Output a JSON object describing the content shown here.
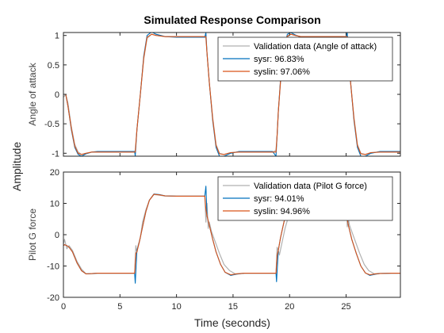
{
  "figure": {
    "title": "Simulated Response Comparison",
    "xlabel": "Time (seconds)",
    "ylabel": "Amplitude"
  },
  "chart_data": [
    {
      "type": "line",
      "ylabel": "Angle of attack",
      "xlim": [
        0,
        29.8
      ],
      "ylim": [
        -1.05,
        1.05
      ],
      "xticks": [],
      "yticks": [
        -1,
        -0.5,
        0,
        0.5,
        1
      ],
      "ytick_labels": [
        "-1",
        "-0.5",
        "0",
        "0.5",
        "1"
      ],
      "legend_position": "top-right",
      "series": [
        {
          "name": "Validation data (Angle of attack)",
          "color": "#b0b0b0",
          "x": [
            0,
            0.2,
            0.4,
            0.7,
            1.0,
            1.3,
            1.6,
            2.0,
            2.5,
            3.0,
            4.0,
            5.0,
            6.0,
            6.3,
            6.35,
            6.5,
            6.8,
            7.1,
            7.4,
            7.8,
            8.2,
            9.0,
            10.0,
            11.0,
            12.0,
            12.5,
            12.6,
            12.7,
            12.9,
            13.2,
            13.5,
            13.8,
            14.2,
            14.8,
            15.5,
            16.5,
            17.5,
            18.5,
            18.8,
            18.9,
            19.0,
            19.2,
            19.5,
            19.8,
            20.1,
            20.5,
            21.0,
            22.0,
            23.0,
            24.0,
            25.0,
            25.1,
            25.2,
            25.4,
            25.7,
            26.0,
            26.3,
            26.7,
            27.2,
            28.0,
            29.0,
            29.8
          ],
          "y": [
            -0.05,
            0.0,
            -0.15,
            -0.55,
            -0.85,
            -0.98,
            -1.02,
            -1.0,
            -0.98,
            -0.98,
            -0.98,
            -0.98,
            -0.98,
            -0.98,
            -0.95,
            -0.6,
            0.0,
            0.6,
            0.95,
            1.02,
            1.0,
            0.98,
            0.98,
            0.98,
            0.98,
            0.98,
            0.95,
            0.7,
            0.2,
            -0.4,
            -0.85,
            -1.0,
            -1.02,
            -0.99,
            -0.98,
            -0.98,
            -0.98,
            -0.98,
            -0.95,
            -0.7,
            -0.3,
            0.2,
            0.7,
            0.97,
            1.02,
            1.0,
            0.98,
            0.98,
            0.98,
            0.98,
            0.98,
            0.95,
            0.7,
            0.2,
            -0.4,
            -0.85,
            -1.0,
            -1.02,
            -0.99,
            -0.98,
            -0.98,
            -0.98
          ]
        },
        {
          "name": "sysr: 96.83%",
          "color": "#0072bd",
          "x": [
            0,
            0.2,
            0.4,
            0.7,
            1.0,
            1.3,
            1.6,
            2.0,
            2.5,
            3.0,
            4.0,
            5.0,
            6.0,
            6.3,
            6.35,
            6.5,
            6.8,
            7.1,
            7.4,
            7.8,
            8.2,
            9.0,
            10.0,
            11.0,
            12.0,
            12.5,
            12.6,
            12.7,
            12.9,
            13.2,
            13.5,
            13.8,
            14.2,
            14.8,
            15.5,
            16.5,
            17.5,
            18.5,
            18.8,
            18.9,
            19.0,
            19.2,
            19.5,
            19.8,
            20.1,
            20.5,
            21.0,
            22.0,
            23.0,
            24.0,
            25.0,
            25.1,
            25.2,
            25.4,
            25.7,
            26.0,
            26.3,
            26.7,
            27.2,
            28.0,
            29.0,
            29.8
          ],
          "y": [
            0.0,
            0.0,
            -0.2,
            -0.6,
            -0.9,
            -1.02,
            -1.05,
            -1.01,
            -0.98,
            -0.97,
            -0.97,
            -0.97,
            -0.97,
            -0.97,
            -1.05,
            -0.6,
            0.0,
            0.65,
            1.0,
            1.06,
            1.02,
            0.98,
            0.97,
            0.97,
            0.97,
            0.97,
            1.05,
            0.7,
            0.2,
            -0.45,
            -0.9,
            -1.05,
            -1.05,
            -1.0,
            -0.97,
            -0.97,
            -0.97,
            -0.97,
            -1.05,
            -0.7,
            -0.3,
            0.25,
            0.75,
            1.02,
            1.05,
            1.01,
            0.97,
            0.97,
            0.97,
            0.97,
            0.97,
            1.05,
            0.7,
            0.2,
            -0.45,
            -0.9,
            -1.05,
            -1.05,
            -1.0,
            -0.97,
            -0.97,
            -0.97
          ]
        },
        {
          "name": "syslin: 97.06%",
          "color": "#d95319",
          "x": [
            0,
            0.2,
            0.4,
            0.7,
            1.0,
            1.3,
            1.6,
            2.0,
            2.5,
            3.0,
            4.0,
            5.0,
            6.0,
            6.3,
            6.35,
            6.5,
            6.8,
            7.1,
            7.4,
            7.8,
            8.2,
            9.0,
            10.0,
            11.0,
            12.0,
            12.5,
            12.6,
            12.7,
            12.9,
            13.2,
            13.5,
            13.8,
            14.2,
            14.8,
            15.5,
            16.5,
            17.5,
            18.5,
            18.8,
            18.9,
            19.0,
            19.2,
            19.5,
            19.8,
            20.1,
            20.5,
            21.0,
            22.0,
            23.0,
            24.0,
            25.0,
            25.1,
            25.2,
            25.4,
            25.7,
            26.0,
            26.3,
            26.7,
            27.2,
            28.0,
            29.0,
            29.8
          ],
          "y": [
            0.0,
            0.0,
            -0.2,
            -0.58,
            -0.88,
            -1.0,
            -1.02,
            -1.0,
            -0.98,
            -0.98,
            -0.98,
            -0.98,
            -0.98,
            -0.98,
            -0.98,
            -0.6,
            0.0,
            0.62,
            0.97,
            1.02,
            1.0,
            0.98,
            0.98,
            0.98,
            0.98,
            0.98,
            0.98,
            0.7,
            0.2,
            -0.42,
            -0.87,
            -1.01,
            -1.02,
            -0.99,
            -0.98,
            -0.98,
            -0.98,
            -0.98,
            -0.98,
            -0.7,
            -0.3,
            0.22,
            0.72,
            0.99,
            1.02,
            1.0,
            0.98,
            0.98,
            0.98,
            0.98,
            0.98,
            0.98,
            0.7,
            0.2,
            -0.42,
            -0.87,
            -1.01,
            -1.02,
            -0.99,
            -0.98,
            -0.98,
            -0.98
          ]
        }
      ]
    },
    {
      "type": "line",
      "ylabel": "Pilot G force",
      "xlim": [
        0,
        29.8
      ],
      "ylim": [
        -20,
        20
      ],
      "xticks": [
        0,
        5,
        10,
        15,
        20,
        25
      ],
      "xtick_labels": [
        "0",
        "5",
        "10",
        "15",
        "20",
        "25"
      ],
      "yticks": [
        -20,
        -10,
        0,
        10,
        20
      ],
      "ytick_labels": [
        "-20",
        "-10",
        "0",
        "10",
        "20"
      ],
      "legend_position": "top-right",
      "series": [
        {
          "name": "Validation data (Pilot G force)",
          "color": "#b0b0b0",
          "x": [
            0,
            0.1,
            0.3,
            0.5,
            0.8,
            1.2,
            1.6,
            2.0,
            2.5,
            3.0,
            4.0,
            5.0,
            6.0,
            6.3,
            6.4,
            6.5,
            6.6,
            6.8,
            7.0,
            7.3,
            7.6,
            8.0,
            8.5,
            9.0,
            10.0,
            11.0,
            12.0,
            12.5,
            12.6,
            12.7,
            12.8,
            12.9,
            13.1,
            13.4,
            13.8,
            14.2,
            14.7,
            15.2,
            16.0,
            17.0,
            18.0,
            18.8,
            18.9,
            19.0,
            19.1,
            19.3,
            19.6,
            20.0,
            20.4,
            20.8,
            21.3,
            22.0,
            23.0,
            24.0,
            25.0,
            25.1,
            25.2,
            25.3,
            25.5,
            25.8,
            26.2,
            26.6,
            27.0,
            27.5,
            28.0,
            29.0,
            29.8
          ],
          "y": [
            -3,
            -1.5,
            -4.5,
            -3.5,
            -5,
            -8.5,
            -11,
            -12.5,
            -12.5,
            -12.3,
            -12.3,
            -12.3,
            -12.3,
            -12.3,
            -3.5,
            -5.5,
            -3.5,
            -1,
            4,
            8,
            11,
            12.8,
            12.6,
            12.3,
            12.3,
            12.3,
            12.3,
            12.3,
            4,
            10,
            2,
            4,
            1,
            -2,
            -6,
            -9.5,
            -11.5,
            -12.5,
            -12.3,
            -12.3,
            -12.3,
            -12.3,
            -4,
            -5,
            -6.5,
            -3,
            2,
            7,
            11,
            12.8,
            12.6,
            12.3,
            12.3,
            12.3,
            12.3,
            2.5,
            5,
            3,
            1,
            -2,
            -6,
            -9.5,
            -11.5,
            -12.5,
            -12.3,
            -12.3,
            -12.3
          ]
        },
        {
          "name": "sysr: 94.01%",
          "color": "#0072bd",
          "x": [
            0,
            0.1,
            0.3,
            0.5,
            0.8,
            1.2,
            1.6,
            2.0,
            2.5,
            3.0,
            4.0,
            5.0,
            6.0,
            6.3,
            6.35,
            6.5,
            6.7,
            7.0,
            7.3,
            7.6,
            8.0,
            8.5,
            9.0,
            10.0,
            11.0,
            12.0,
            12.5,
            12.6,
            12.7,
            12.9,
            13.2,
            13.5,
            13.9,
            14.3,
            14.8,
            15.3,
            16.0,
            17.0,
            18.0,
            18.8,
            18.85,
            19.0,
            19.2,
            19.5,
            19.9,
            20.3,
            20.8,
            21.3,
            22.0,
            23.0,
            24.0,
            25.0,
            25.05,
            25.2,
            25.5,
            25.9,
            26.3,
            26.7,
            27.1,
            27.6,
            28.0,
            29.0,
            29.8
          ],
          "y": [
            -3.5,
            -3.2,
            -3.5,
            -4,
            -5.5,
            -9,
            -11.5,
            -12.5,
            -12.4,
            -12.3,
            -12.3,
            -12.3,
            -12.3,
            -12.3,
            -15.5,
            -5,
            -2.5,
            2.5,
            7.5,
            11,
            13,
            12.8,
            12.4,
            12.3,
            12.3,
            12.3,
            12.3,
            15.5,
            6,
            3,
            -1.5,
            -5.5,
            -9.5,
            -12,
            -13,
            -12.6,
            -12.3,
            -12.3,
            -12.3,
            -12.3,
            -15,
            -5,
            -1,
            4,
            9,
            12,
            13.2,
            12.6,
            12.3,
            12.3,
            12.3,
            12.3,
            6.5,
            3,
            -1.5,
            -6,
            -10,
            -12.2,
            -13,
            -12.6,
            -12.4,
            -12.3,
            -12.3
          ]
        },
        {
          "name": "syslin: 94.96%",
          "color": "#d95319",
          "x": [
            0,
            0.1,
            0.3,
            0.5,
            0.8,
            1.2,
            1.6,
            2.0,
            2.5,
            3.0,
            4.0,
            5.0,
            6.0,
            6.3,
            6.4,
            6.5,
            6.7,
            7.0,
            7.3,
            7.6,
            8.0,
            8.5,
            9.0,
            10.0,
            11.0,
            12.0,
            12.5,
            12.6,
            12.7,
            12.9,
            13.2,
            13.5,
            13.9,
            14.3,
            14.8,
            15.3,
            16.0,
            17.0,
            18.0,
            18.8,
            18.9,
            19.0,
            19.2,
            19.5,
            19.9,
            20.3,
            20.8,
            21.3,
            22.0,
            23.0,
            24.0,
            25.0,
            25.1,
            25.2,
            25.5,
            25.9,
            26.3,
            26.7,
            27.1,
            27.6,
            28.0,
            29.0,
            29.8
          ],
          "y": [
            -3.5,
            -3.2,
            -3.5,
            -4,
            -5.5,
            -9,
            -11.5,
            -12.5,
            -12.4,
            -12.3,
            -12.3,
            -12.3,
            -12.3,
            -12.3,
            -6,
            -5.5,
            -2.5,
            2.5,
            7.5,
            11,
            12.9,
            12.7,
            12.4,
            12.3,
            12.3,
            12.3,
            12.3,
            8,
            6,
            3,
            -1.5,
            -5.5,
            -9.5,
            -12,
            -12.8,
            -12.5,
            -12.3,
            -12.3,
            -12.3,
            -12.3,
            -6.5,
            -5,
            -1,
            4,
            9,
            12,
            13,
            12.5,
            12.3,
            12.3,
            12.3,
            12.3,
            5,
            3,
            -1.5,
            -6,
            -10,
            -12.2,
            -12.8,
            -12.5,
            -12.4,
            -12.3,
            -12.3
          ]
        }
      ]
    }
  ]
}
